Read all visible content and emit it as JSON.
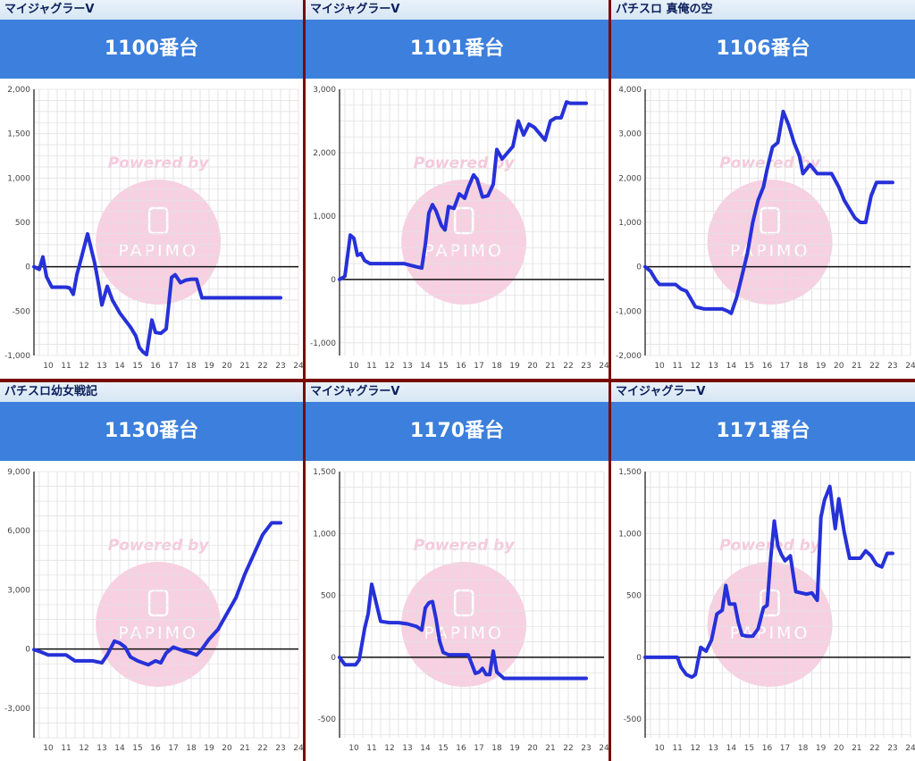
{
  "panels": [
    {
      "machine": "マイジャグラーV",
      "unit": "1100番台"
    },
    {
      "machine": "マイジャグラーV",
      "unit": "1101番台"
    },
    {
      "machine": "パチスロ 真俺の空",
      "unit": "1106番台"
    },
    {
      "machine": "パチスロ幼女戦記",
      "unit": "1130番台"
    },
    {
      "machine": "マイジャグラーV",
      "unit": "1170番台"
    },
    {
      "machine": "マイジャグラーV",
      "unit": "1171番台"
    }
  ],
  "watermark": {
    "text": "Powered by",
    "logo": "PAPIMO"
  },
  "colors": {
    "line": "#2631d8",
    "header": "#3c7fdc",
    "border": "#7a0a0a",
    "watermark": "#f7c8dc"
  },
  "chart_data": [
    {
      "type": "line",
      "title": "1100番台",
      "x_ticks": [
        "10",
        "11",
        "12",
        "13",
        "14",
        "15",
        "16",
        "17",
        "18",
        "19",
        "20",
        "21",
        "22",
        "23",
        "24"
      ],
      "y_ticks": [
        "2,000",
        "1,500",
        "1,000",
        "500",
        "0",
        "-500",
        "-1,000"
      ],
      "xlim": [
        9.2,
        24
      ],
      "ylim": [
        -1000,
        2000
      ],
      "x": [
        9.2,
        9.5,
        9.7,
        9.9,
        10.2,
        10.5,
        10.8,
        11.0,
        11.2,
        11.4,
        11.6,
        11.8,
        12.2,
        12.6,
        12.8,
        13.0,
        13.3,
        13.6,
        14.0,
        14.3,
        14.6,
        14.9,
        15.1,
        15.3,
        15.5,
        15.8,
        16.0,
        16.3,
        16.6,
        16.9,
        17.1,
        17.4,
        17.7,
        18.0,
        18.3,
        18.6,
        18.9,
        19.2,
        23.0
      ],
      "y": [
        0,
        -30,
        110,
        -110,
        -230,
        -230,
        -230,
        -230,
        -240,
        -310,
        -90,
        60,
        370,
        40,
        -180,
        -430,
        -220,
        -380,
        -520,
        -600,
        -680,
        -780,
        -910,
        -960,
        -990,
        -600,
        -740,
        -750,
        -700,
        -120,
        -90,
        -180,
        -150,
        -140,
        -140,
        -350,
        -350,
        -350,
        -350
      ]
    },
    {
      "type": "line",
      "title": "1101番台",
      "x_ticks": [
        "10",
        "11",
        "12",
        "13",
        "14",
        "15",
        "16",
        "17",
        "18",
        "19",
        "20",
        "21",
        "22",
        "23",
        "24"
      ],
      "y_ticks": [
        "3,000",
        "2,000",
        "1,000",
        "0",
        "-1,000"
      ],
      "xlim": [
        9.2,
        24
      ],
      "ylim": [
        -1200,
        3000
      ],
      "x": [
        9.2,
        9.5,
        9.8,
        10.0,
        10.2,
        10.4,
        10.6,
        10.9,
        11.2,
        12.0,
        12.8,
        13.2,
        13.5,
        13.8,
        14.0,
        14.2,
        14.4,
        14.6,
        14.9,
        15.1,
        15.3,
        15.6,
        15.9,
        16.2,
        16.4,
        16.7,
        16.9,
        17.2,
        17.5,
        17.8,
        18.0,
        18.3,
        18.6,
        18.9,
        19.2,
        19.5,
        19.8,
        20.1,
        20.4,
        20.7,
        21.0,
        21.3,
        21.6,
        21.9,
        22.1,
        22.4,
        22.7,
        23.0
      ],
      "y": [
        0,
        50,
        700,
        650,
        380,
        410,
        300,
        250,
        250,
        250,
        250,
        220,
        200,
        180,
        550,
        1050,
        1180,
        1080,
        850,
        780,
        1150,
        1120,
        1350,
        1280,
        1450,
        1650,
        1580,
        1300,
        1320,
        1500,
        2050,
        1900,
        2000,
        2100,
        2500,
        2280,
        2450,
        2400,
        2300,
        2200,
        2500,
        2550,
        2550,
        2800,
        2780,
        2780,
        2780,
        2780
      ]
    },
    {
      "type": "line",
      "title": "1106番台",
      "x_ticks": [
        "10",
        "11",
        "12",
        "13",
        "14",
        "15",
        "16",
        "17",
        "18",
        "19",
        "20",
        "21",
        "22",
        "23",
        "24"
      ],
      "y_ticks": [
        "4,000",
        "3,000",
        "2,000",
        "1,000",
        "0",
        "-1,000",
        "-2,000"
      ],
      "xlim": [
        9.2,
        24
      ],
      "ylim": [
        -2000,
        4000
      ],
      "x": [
        9.2,
        9.5,
        9.8,
        10.0,
        10.5,
        10.9,
        11.2,
        11.5,
        12.0,
        12.5,
        13.0,
        13.5,
        13.8,
        14.0,
        14.3,
        14.6,
        14.9,
        15.2,
        15.5,
        15.8,
        16.0,
        16.3,
        16.6,
        16.9,
        17.2,
        17.5,
        17.8,
        18.0,
        18.4,
        18.8,
        19.2,
        19.6,
        20.0,
        20.3,
        20.6,
        20.9,
        21.2,
        21.5,
        21.8,
        22.1,
        22.5,
        23.0
      ],
      "y": [
        0,
        -100,
        -300,
        -400,
        -400,
        -400,
        -500,
        -550,
        -900,
        -950,
        -950,
        -950,
        -1000,
        -1050,
        -700,
        -200,
        300,
        1000,
        1500,
        1800,
        2200,
        2700,
        2800,
        3500,
        3200,
        2800,
        2500,
        2100,
        2300,
        2100,
        2100,
        2100,
        1800,
        1500,
        1300,
        1100,
        1000,
        1000,
        1600,
        1900,
        1900,
        1900
      ]
    },
    {
      "type": "line",
      "title": "1130番台",
      "x_ticks": [
        "10",
        "11",
        "12",
        "13",
        "14",
        "15",
        "16",
        "17",
        "18",
        "19",
        "20",
        "21",
        "22",
        "23",
        "24"
      ],
      "y_ticks": [
        "9,000",
        "6,000",
        "3,000",
        "0",
        "-3,000"
      ],
      "xlim": [
        9.2,
        24
      ],
      "ylim": [
        -4500,
        9000
      ],
      "x": [
        9.2,
        9.6,
        10.0,
        10.5,
        11.0,
        11.5,
        12.0,
        12.5,
        13.0,
        13.3,
        13.7,
        14.0,
        14.3,
        14.6,
        15.0,
        15.3,
        15.6,
        16.0,
        16.3,
        16.6,
        17.0,
        17.3,
        17.6,
        18.0,
        18.3,
        18.6,
        19.0,
        19.5,
        20.0,
        20.5,
        21.0,
        21.5,
        22.0,
        22.5,
        23.0
      ],
      "y": [
        -30,
        -150,
        -300,
        -300,
        -300,
        -600,
        -600,
        -600,
        -700,
        -300,
        400,
        300,
        100,
        -400,
        -600,
        -700,
        -800,
        -600,
        -700,
        -200,
        100,
        0,
        -100,
        -200,
        -300,
        0,
        500,
        1000,
        1800,
        2600,
        3800,
        4800,
        5800,
        6400,
        6400
      ]
    },
    {
      "type": "line",
      "title": "1170番台",
      "x_ticks": [
        "10",
        "11",
        "12",
        "13",
        "14",
        "15",
        "16",
        "17",
        "18",
        "19",
        "20",
        "21",
        "22",
        "23",
        "24"
      ],
      "y_ticks": [
        "1,500",
        "1,000",
        "500",
        "0",
        "-500"
      ],
      "xlim": [
        9.2,
        24
      ],
      "ylim": [
        -650,
        1500
      ],
      "x": [
        9.2,
        9.5,
        9.8,
        10.1,
        10.3,
        10.6,
        10.8,
        11.0,
        11.5,
        12.0,
        12.5,
        13.0,
        13.5,
        13.8,
        14.0,
        14.2,
        14.4,
        14.6,
        14.8,
        15.0,
        15.3,
        15.6,
        16.0,
        16.4,
        16.8,
        17.0,
        17.2,
        17.4,
        17.6,
        17.8,
        18.0,
        18.4,
        19.0,
        20.0,
        21.0,
        22.0,
        23.0
      ],
      "y": [
        0,
        -60,
        -60,
        -60,
        -20,
        230,
        350,
        590,
        290,
        280,
        280,
        270,
        250,
        220,
        400,
        440,
        450,
        310,
        130,
        40,
        20,
        20,
        20,
        20,
        -130,
        -120,
        -90,
        -140,
        -140,
        50,
        -120,
        -170,
        -170,
        -170,
        -170,
        -170,
        -170
      ]
    },
    {
      "type": "line",
      "title": "1171番台",
      "x_ticks": [
        "10",
        "11",
        "12",
        "13",
        "14",
        "15",
        "16",
        "17",
        "18",
        "19",
        "20",
        "21",
        "22",
        "23",
        "24"
      ],
      "y_ticks": [
        "1,500",
        "1,000",
        "500",
        "0",
        "-500"
      ],
      "xlim": [
        9.2,
        24
      ],
      "ylim": [
        -650,
        1500
      ],
      "x": [
        9.2,
        10.0,
        10.5,
        11.0,
        11.2,
        11.5,
        11.8,
        12.0,
        12.3,
        12.6,
        12.9,
        13.2,
        13.5,
        13.7,
        13.9,
        14.2,
        14.4,
        14.6,
        14.9,
        15.2,
        15.5,
        15.8,
        16.0,
        16.2,
        16.4,
        16.6,
        16.8,
        17.0,
        17.3,
        17.6,
        17.9,
        18.2,
        18.5,
        18.8,
        19.0,
        19.2,
        19.5,
        19.8,
        20.0,
        20.3,
        20.6,
        20.9,
        21.2,
        21.5,
        21.8,
        22.1,
        22.4,
        22.7,
        23.0
      ],
      "y": [
        0,
        0,
        0,
        0,
        -80,
        -140,
        -160,
        -140,
        80,
        50,
        140,
        350,
        380,
        580,
        430,
        430,
        280,
        180,
        170,
        170,
        230,
        400,
        420,
        800,
        1100,
        900,
        830,
        780,
        820,
        530,
        520,
        510,
        520,
        460,
        1130,
        1270,
        1380,
        1040,
        1280,
        1010,
        800,
        800,
        800,
        860,
        820,
        750,
        730,
        840,
        840
      ]
    }
  ]
}
